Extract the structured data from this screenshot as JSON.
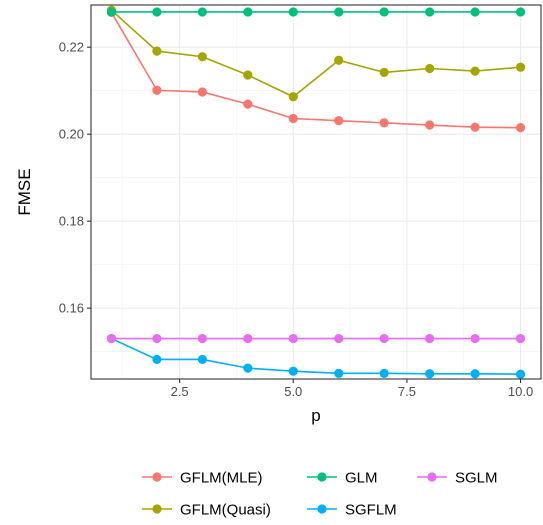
{
  "chart_data": {
    "type": "line",
    "title": "",
    "xlabel": "p",
    "ylabel": "FMSE",
    "xlim": [
      0.55,
      10.45
    ],
    "ylim": [
      0.1437,
      0.2297
    ],
    "x_ticks": [
      2.5,
      5.0,
      7.5,
      10.0
    ],
    "x_tick_labels": [
      "2.5",
      "5.0",
      "7.5",
      "10.0"
    ],
    "y_ticks": [
      0.16,
      0.18,
      0.2,
      0.22
    ],
    "y_tick_labels": [
      "0.16",
      "0.18",
      "0.20",
      "0.22"
    ],
    "grid": true,
    "legend_position": "bottom",
    "x": [
      1,
      2,
      3,
      4,
      5,
      6,
      7,
      8,
      9,
      10
    ],
    "series": [
      {
        "name": "GFLM(MLE)",
        "color": "#F8766D",
        "values": [
          0.228,
          0.2101,
          0.2097,
          0.2069,
          0.2036,
          0.2031,
          0.2026,
          0.2021,
          0.2016,
          0.2015
        ]
      },
      {
        "name": "GFLM(Quasi)",
        "color": "#A3A500",
        "values": [
          0.2285,
          0.2191,
          0.2178,
          0.2136,
          0.2086,
          0.217,
          0.2142,
          0.2151,
          0.2145,
          0.2154
        ]
      },
      {
        "name": "GLM",
        "color": "#00BF7D",
        "values": [
          0.2281,
          0.2281,
          0.2281,
          0.2281,
          0.2281,
          0.2281,
          0.2281,
          0.2281,
          0.2281,
          0.2281
        ]
      },
      {
        "name": "SGFLM",
        "color": "#00B0F6",
        "values": [
          0.153,
          0.1482,
          0.1482,
          0.1462,
          0.1455,
          0.145,
          0.145,
          0.1449,
          0.1449,
          0.1448
        ]
      },
      {
        "name": "SGLM",
        "color": "#E76BF3",
        "values": [
          0.153,
          0.153,
          0.153,
          0.153,
          0.153,
          0.153,
          0.153,
          0.153,
          0.153,
          0.153
        ]
      }
    ],
    "legend_order": [
      "GFLM(MLE)",
      "GLM",
      "SGLM",
      "GFLM(Quasi)",
      "SGFLM"
    ]
  }
}
